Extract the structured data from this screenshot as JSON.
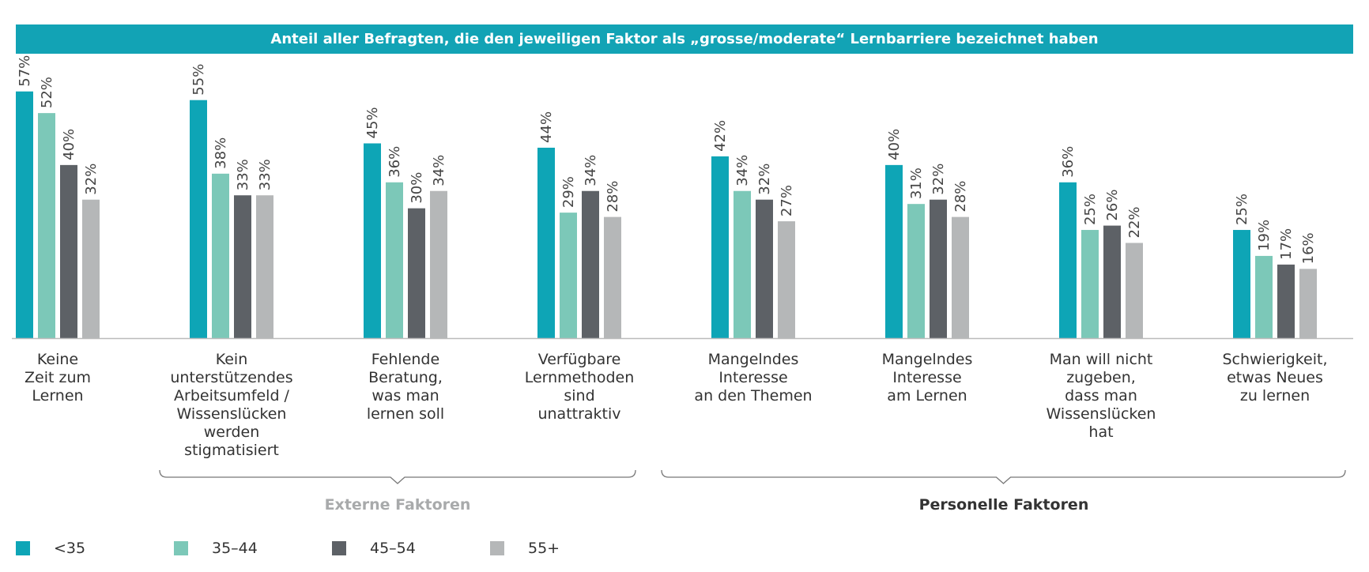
{
  "colors": {
    "title_bg": "#12a3b5",
    "axis": "#bbbbbb",
    "series": [
      "#0ea5b6",
      "#7cc8b8",
      "#5d6166",
      "#b5b7b8"
    ],
    "bracket": "#777777",
    "group_external": "#a8aaab",
    "group_personal": "#333333"
  },
  "chart_data": {
    "type": "bar",
    "title": "Anteil aller Befragten, die den jeweiligen Faktor als „grosse/moderate“ Lernbarriere bezeichnet haben",
    "categories": [
      "Keine\nZeit zum\nLernen",
      "Kein\nunterstützendes\nArbeitsumfeld /\nWissenslücken\nwerden\nstigmatisiert",
      "Fehlende\nBeratung,\nwas man\nlernen soll",
      "Verfügbare\nLernmethoden\nsind\nunattraktiv",
      "Mangelndes\nInteresse\nan den Themen",
      "Mangelndes\nInteresse\nam Lernen",
      "Man will nicht\nzugeben,\ndass man\nWissenslücken\nhat",
      "Schwierigkeit,\netwas Neues\nzu lernen"
    ],
    "series": [
      {
        "name": "<35",
        "values": [
          57,
          55,
          45,
          44,
          42,
          40,
          36,
          25
        ]
      },
      {
        "name": "35–44",
        "values": [
          52,
          38,
          36,
          29,
          34,
          31,
          25,
          19
        ]
      },
      {
        "name": "45–54",
        "values": [
          40,
          33,
          30,
          34,
          32,
          32,
          26,
          17
        ]
      },
      {
        "name": "55+",
        "values": [
          32,
          33,
          34,
          28,
          27,
          28,
          22,
          16
        ]
      }
    ],
    "value_suffix": "%",
    "groups": [
      {
        "label": "Externe Faktoren",
        "first_category": 1,
        "last_category": 3
      },
      {
        "label": "Personelle Faktoren",
        "first_category": 4,
        "last_category": 7
      }
    ],
    "ylim": [
      0,
      60
    ],
    "grid": false,
    "legend_position": "bottom-left"
  }
}
